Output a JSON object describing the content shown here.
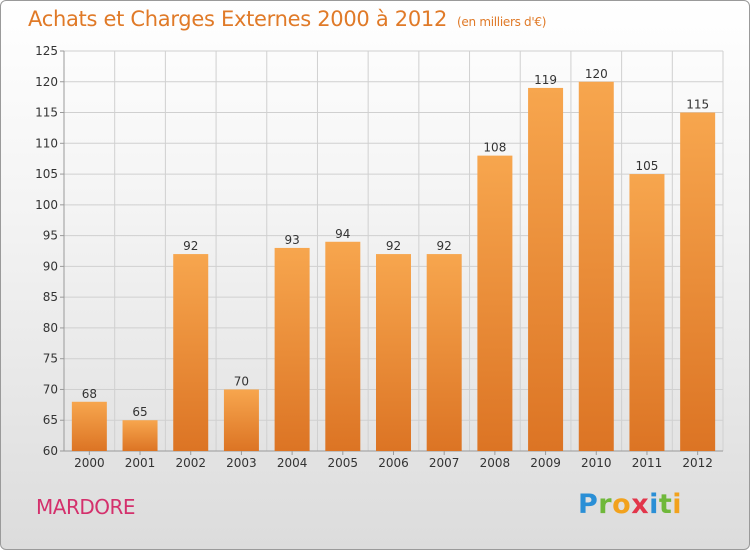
{
  "header": {
    "title": "Achats et Charges Externes 2000 à 2012",
    "unit": "(en milliers d'€)"
  },
  "footer": {
    "town": "MARDORE",
    "logo_letters": [
      {
        "char": "P",
        "color": "#2a8fd6"
      },
      {
        "char": "r",
        "color": "#6fb83a"
      },
      {
        "char": "o",
        "color": "#f2a21d"
      },
      {
        "char": "x",
        "color": "#e2364b"
      },
      {
        "char": "i",
        "color": "#2a8fd6"
      },
      {
        "char": "t",
        "color": "#6fb83a"
      },
      {
        "char": "i",
        "color": "#f2a21d"
      }
    ]
  },
  "colors": {
    "bar_top": "#f7a64e",
    "bar_bottom": "#dc7424",
    "axis": "#9a9a9a",
    "grid": "#d0d0d0"
  },
  "chart_data": {
    "type": "bar",
    "title": "Achats et Charges Externes 2000 à 2012",
    "subtitle": "(en milliers d'€)",
    "categories": [
      "2000",
      "2001",
      "2002",
      "2003",
      "2004",
      "2005",
      "2006",
      "2007",
      "2008",
      "2009",
      "2010",
      "2011",
      "2012"
    ],
    "values": [
      68,
      65,
      92,
      70,
      93,
      94,
      92,
      92,
      108,
      119,
      120,
      105,
      115
    ],
    "ylim": [
      60,
      125
    ],
    "yticks": [
      60,
      65,
      70,
      75,
      80,
      85,
      90,
      95,
      100,
      105,
      110,
      115,
      120,
      125
    ],
    "grid": true,
    "legend": "none"
  }
}
